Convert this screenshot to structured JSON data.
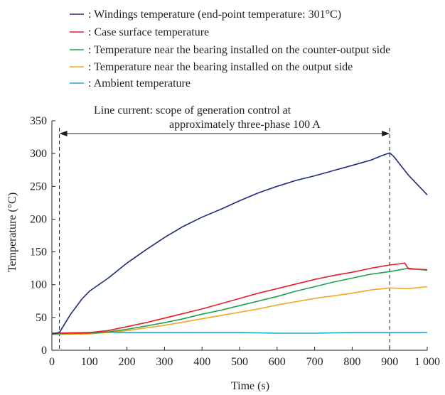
{
  "chart_data": {
    "type": "line",
    "title": "",
    "xlabel": "Time (s)",
    "ylabel": "Temperature (°C)",
    "xlim": [
      0,
      1000
    ],
    "ylim": [
      0,
      350
    ],
    "x_tick_labels": [
      "0",
      "100",
      "200",
      "300",
      "400",
      "500",
      "600",
      "700",
      "800",
      "900",
      "1 000"
    ],
    "y_tick_labels": [
      "0",
      "50",
      "100",
      "150",
      "200",
      "250",
      "300",
      "350"
    ],
    "x_ticks": [
      0,
      100,
      200,
      300,
      400,
      500,
      600,
      700,
      800,
      900,
      1000
    ],
    "y_ticks": [
      0,
      50,
      100,
      150,
      200,
      250,
      300,
      350
    ],
    "grid": false,
    "legend_position": "top",
    "annotation": {
      "line1": "Line current: scope of generation control at",
      "line2": "approximately three-phase 100 A",
      "x_start": 20,
      "x_end": 900
    },
    "series": [
      {
        "name": ": Windings temperature (end-point temperature: 301°C)",
        "color": "#1f2a7a",
        "x": [
          0,
          20,
          50,
          80,
          100,
          150,
          200,
          250,
          300,
          350,
          400,
          450,
          500,
          550,
          600,
          650,
          700,
          750,
          800,
          850,
          880,
          900,
          910,
          950,
          1000
        ],
        "y": [
          25,
          27,
          55,
          78,
          90,
          110,
          133,
          153,
          172,
          189,
          203,
          215,
          228,
          240,
          250,
          259,
          266,
          274,
          282,
          290,
          297,
          301,
          296,
          267,
          237
        ]
      },
      {
        "name": ": Case surface temperature",
        "color": "#e0202a",
        "x": [
          0,
          100,
          150,
          200,
          250,
          300,
          350,
          400,
          450,
          500,
          550,
          600,
          650,
          700,
          750,
          800,
          850,
          900,
          930,
          940,
          950,
          1000
        ],
        "y": [
          26,
          27,
          30,
          36,
          42,
          49,
          56,
          63,
          71,
          79,
          87,
          94,
          101,
          108,
          114,
          119,
          125,
          130,
          132,
          133,
          124,
          123
        ]
      },
      {
        "name": ": Temperature near the bearing installed on the counter-output side",
        "color": "#1fa052",
        "x": [
          0,
          100,
          150,
          200,
          250,
          300,
          350,
          400,
          450,
          500,
          550,
          600,
          650,
          700,
          750,
          800,
          850,
          900,
          950,
          1000
        ],
        "y": [
          25,
          26,
          28,
          32,
          37,
          42,
          48,
          55,
          61,
          68,
          75,
          82,
          90,
          97,
          104,
          110,
          116,
          120,
          125,
          122
        ]
      },
      {
        "name": ": Temperature near the bearing installed on the output side",
        "color": "#f5a623",
        "x": [
          0,
          100,
          150,
          200,
          250,
          300,
          350,
          400,
          450,
          500,
          550,
          600,
          650,
          700,
          750,
          800,
          850,
          900,
          950,
          1000
        ],
        "y": [
          24,
          25,
          27,
          30,
          34,
          38,
          43,
          48,
          53,
          58,
          63,
          69,
          74,
          79,
          83,
          87,
          92,
          95,
          94,
          97
        ]
      },
      {
        "name": ": Ambient temperature",
        "color": "#22a6d8",
        "x": [
          0,
          100,
          200,
          300,
          400,
          500,
          600,
          700,
          800,
          900,
          1000
        ],
        "y": [
          26,
          27,
          27,
          27,
          27,
          27,
          26,
          26,
          27,
          27,
          27
        ]
      }
    ]
  }
}
